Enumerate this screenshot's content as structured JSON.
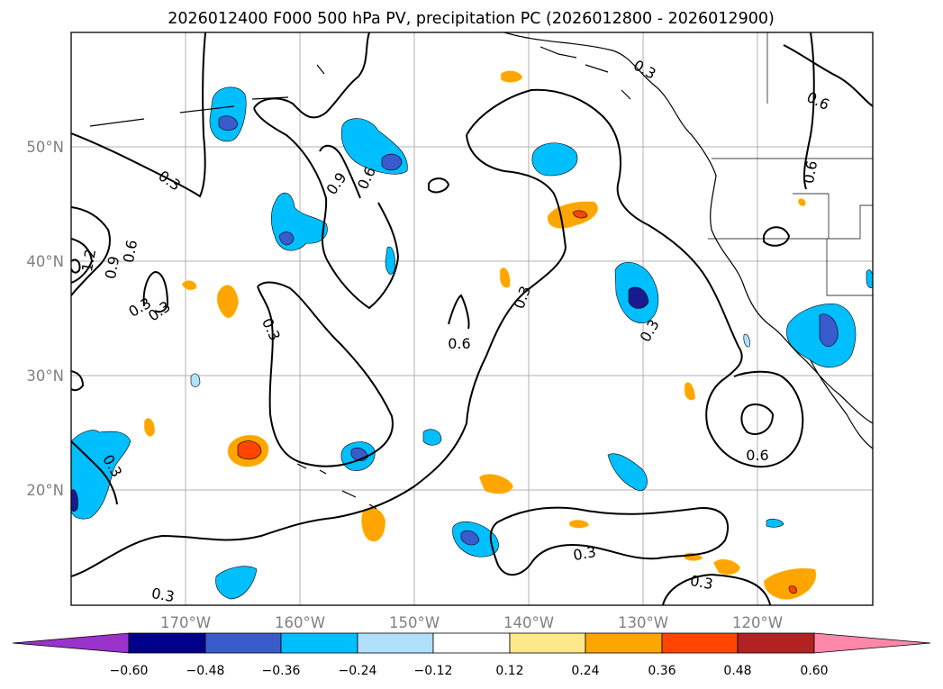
{
  "title": "2026012400 F000 500 hPa PV, precipitation PC (2026012800 - 2026012900)",
  "map": {
    "region": "North Pacific / western North America",
    "lon_range": [
      -180,
      -110
    ],
    "lat_range": [
      10,
      60
    ],
    "lon_ticks": [
      "170°W",
      "160°W",
      "150°W",
      "140°W",
      "130°W",
      "120°W"
    ],
    "lat_ticks": [
      "50°N",
      "40°N",
      "30°N",
      "20°N"
    ],
    "gridlines": true
  },
  "pv_contour_labels": [
    "0.3",
    "0.6",
    "0.9",
    "1.2",
    "0.6",
    "0.3",
    "0.9",
    "0.6",
    "0.3",
    "0.3",
    "0.6",
    "0.3",
    "0.3",
    "0.6",
    "0.3",
    "0.6",
    "0.3",
    "0.3",
    "0.3",
    "0.3"
  ],
  "colorbar": {
    "tick_labels": [
      "−0.60",
      "−0.48",
      "−0.36",
      "−0.24",
      "−0.12",
      "0.12",
      "0.24",
      "0.36",
      "0.48",
      "0.60"
    ],
    "colors": [
      "#9933cc",
      "#00008b",
      "#3a5bcc",
      "#00bfff",
      "#b0e0fa",
      "#ffffff",
      "#ffe88a",
      "#ffa500",
      "#ff4500",
      "#b22222",
      "#ff88aa"
    ]
  },
  "colors": {
    "c_m60": "#9933cc",
    "c_m48": "#1a1a90",
    "c_m36": "#3a5bcc",
    "c_m24": "#00bfff",
    "c_m12": "#b0e0fa",
    "c_p12": "#ffe88a",
    "c_p24": "#ffa500",
    "c_p36": "#ff4500",
    "c_p48": "#b22222"
  }
}
